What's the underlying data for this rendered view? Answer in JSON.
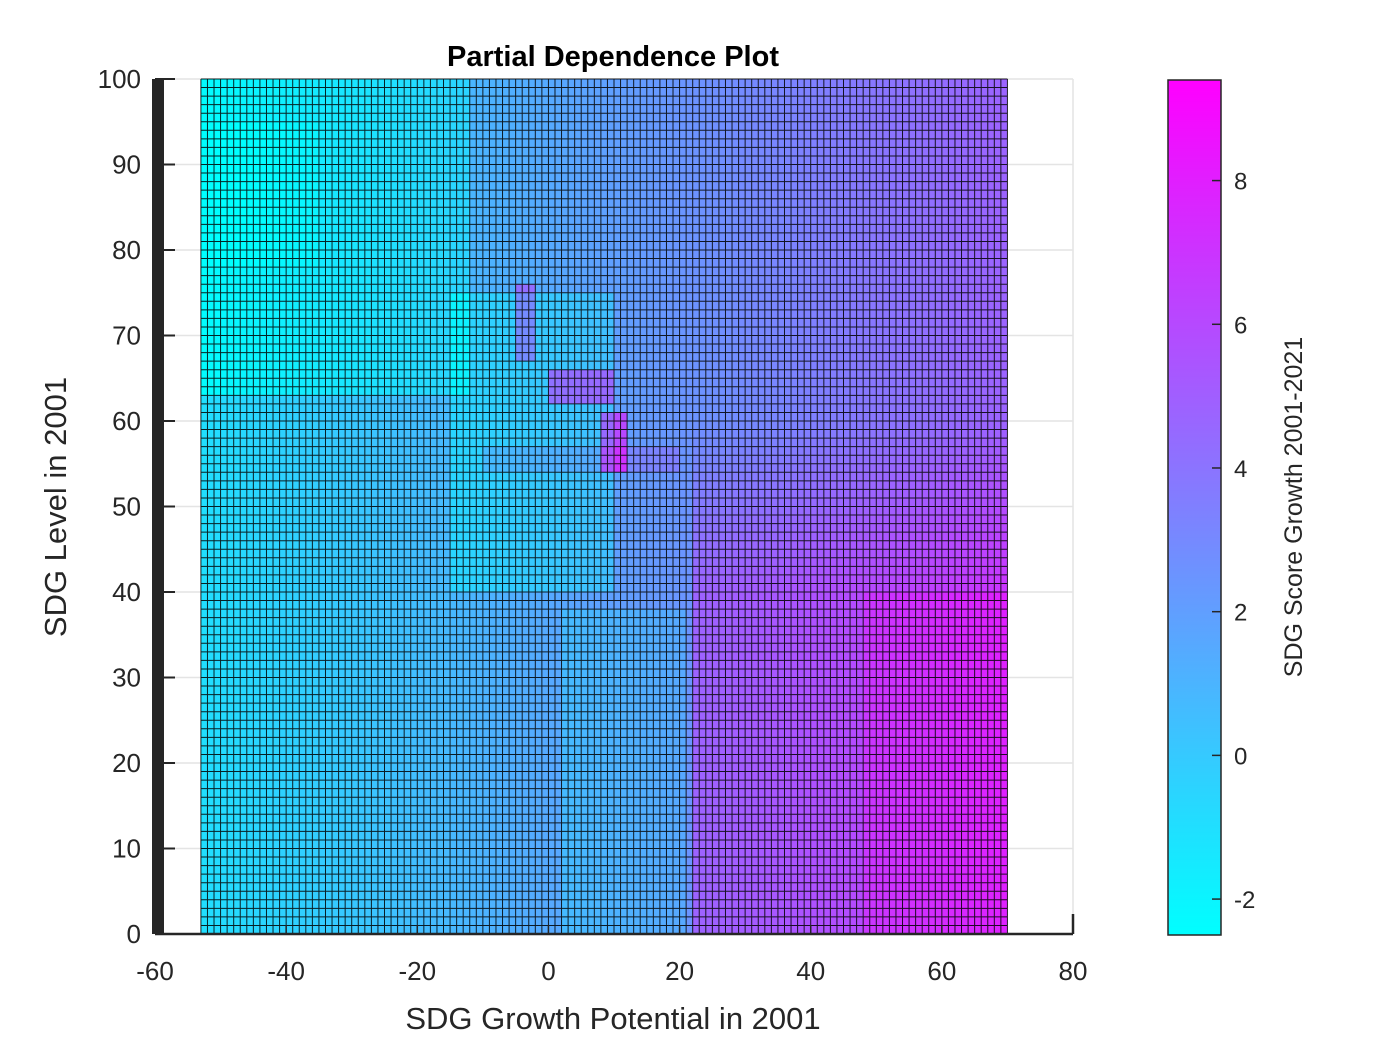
{
  "chart_data": {
    "type": "heatmap",
    "title": "Partial Dependence Plot",
    "xlabel": "SDG Growth Potential in 2001",
    "ylabel": "SDG Level in 2001",
    "colorbar_label": "SDG Score Growth 2001-2021",
    "xlim": [
      -60,
      80
    ],
    "ylim": [
      0,
      100
    ],
    "x_ticks": [
      -60,
      -40,
      -20,
      0,
      20,
      40,
      60,
      80
    ],
    "y_ticks": [
      0,
      10,
      20,
      30,
      40,
      50,
      60,
      70,
      80,
      90,
      100
    ],
    "x_tick_labels": [
      "-60",
      "-40",
      "-20",
      "0",
      "20",
      "40",
      "60",
      "80"
    ],
    "y_tick_labels": [
      "0",
      "10",
      "20",
      "30",
      "40",
      "50",
      "60",
      "70",
      "80",
      "90",
      "100"
    ],
    "grid_x_range": [
      -53,
      70
    ],
    "grid_y_range": [
      0,
      100
    ],
    "color_range": [
      -2.5,
      9.4
    ],
    "colorbar_ticks": [
      -2,
      0,
      2,
      4,
      6,
      8
    ],
    "colorbar_tick_labels": [
      "-2",
      "0",
      "2",
      "4",
      "6",
      "8"
    ],
    "colormap": "cool",
    "colormap_low": "#00ffff",
    "colormap_high": "#ff00ff",
    "grid": true,
    "grid_line_color": "#000000",
    "axis_color": "#262626",
    "colorbar_position": "right"
  }
}
